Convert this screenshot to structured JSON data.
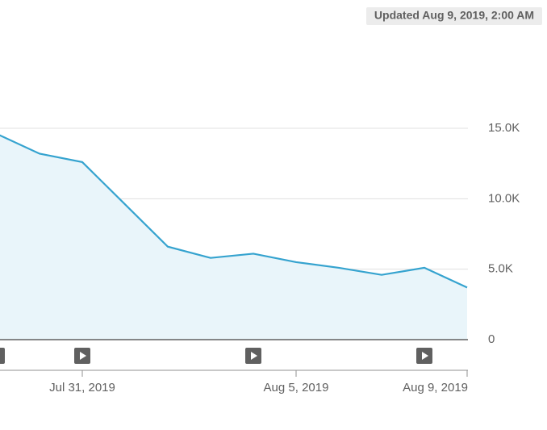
{
  "chart_data": {
    "type": "area",
    "badge": "Updated Aug 9, 2019, 2:00 AM",
    "x": [
      "2019-07-29",
      "2019-07-30",
      "2019-07-31",
      "2019-08-01",
      "2019-08-02",
      "2019-08-03",
      "2019-08-04",
      "2019-08-05",
      "2019-08-06",
      "2019-08-07",
      "2019-08-08",
      "2019-08-09"
    ],
    "series": [
      {
        "color": "#35a3cf",
        "values": [
          14600,
          13200,
          12600,
          9600,
          6600,
          5800,
          6100,
          5500,
          5100,
          4600,
          5100,
          3700
        ]
      }
    ],
    "xlim": [
      "2019-07-29",
      "2019-08-09"
    ],
    "xticks": [
      {
        "value": "2019-07-31",
        "label": "Jul 31, 2019"
      },
      {
        "value": "2019-08-05",
        "label": "Aug 5, 2019"
      },
      {
        "value": "2019-08-09",
        "label": "Aug 9, 2019"
      }
    ],
    "ylim": [
      0,
      15000
    ],
    "yticks": [
      0,
      {
        "value": 5000,
        "label": "5.0K"
      },
      {
        "value": 10000,
        "label": "10.0K"
      },
      {
        "value": 15000,
        "label": "15.0K"
      }
    ],
    "grid": true
  }
}
